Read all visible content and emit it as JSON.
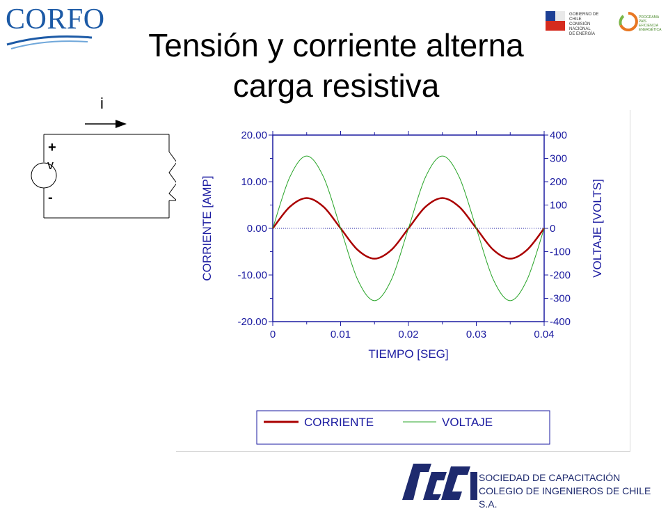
{
  "header": {
    "corfo_logo_text": "CORFO",
    "gov_logo_lines": [
      "GOBIERNO DE CHILE",
      "COMISIÓN NACIONAL",
      "DE ENERGÍA"
    ],
    "energy_logo_lines": [
      "PROGRAMA PAÍS",
      "EFICIENCIA",
      "ENERGÉTICA"
    ]
  },
  "title": {
    "line1": "Tensión y corriente alterna",
    "line2": "carga resistiva"
  },
  "circuit": {
    "current_label": "i",
    "plus_label": "+",
    "v_label": "v",
    "minus_label": "-"
  },
  "footer": {
    "line1": "SOCIEDAD DE CAPACITACIÓN",
    "line2": "COLEGIO DE INGENIEROS DE CHILE S.A."
  },
  "colors": {
    "axis": "#1a1aa0",
    "current": "#aa0000",
    "voltage": "#2aa52a",
    "title": "#000000",
    "footer": "#1e2a6e",
    "corfo": "#1c5aa6"
  },
  "chart_data": {
    "type": "line",
    "xlabel": "TIEMPO [SEG]",
    "ylabel_left": "CORRIENTE [AMP]",
    "ylabel_right": "VOLTAJE [VOLTS]",
    "xlim": [
      0,
      0.04
    ],
    "ylim_left": [
      -20,
      20
    ],
    "ylim_right": [
      -400,
      400
    ],
    "x_ticks": [
      "0",
      "0.01",
      "0.02",
      "0.03",
      "0.04"
    ],
    "y_ticks_left": [
      "20.00",
      "10.00",
      "0.00",
      "-10.00",
      "-20.00"
    ],
    "y_ticks_right": [
      "400",
      "300",
      "200",
      "100",
      "0",
      "-100",
      "-200",
      "-300",
      "-400"
    ],
    "zero_line": "dotted",
    "legend_position": "bottom",
    "x": [
      0,
      0.0025,
      0.005,
      0.0075,
      0.01,
      0.0125,
      0.015,
      0.0175,
      0.02,
      0.0225,
      0.025,
      0.0275,
      0.03,
      0.0325,
      0.035,
      0.0375,
      0.04
    ],
    "series": [
      {
        "name": "CORRIENTE",
        "axis": "left",
        "values": [
          0,
          4.6,
          6.5,
          4.6,
          0,
          -4.6,
          -6.5,
          -4.6,
          0,
          4.6,
          6.5,
          4.6,
          0,
          -4.6,
          -6.5,
          -4.6,
          0
        ]
      },
      {
        "name": "VOLTAJE",
        "axis": "right",
        "values": [
          0,
          219,
          310,
          219,
          0,
          -219,
          -310,
          -219,
          0,
          219,
          310,
          219,
          0,
          -219,
          -310,
          -219,
          0
        ]
      }
    ]
  }
}
